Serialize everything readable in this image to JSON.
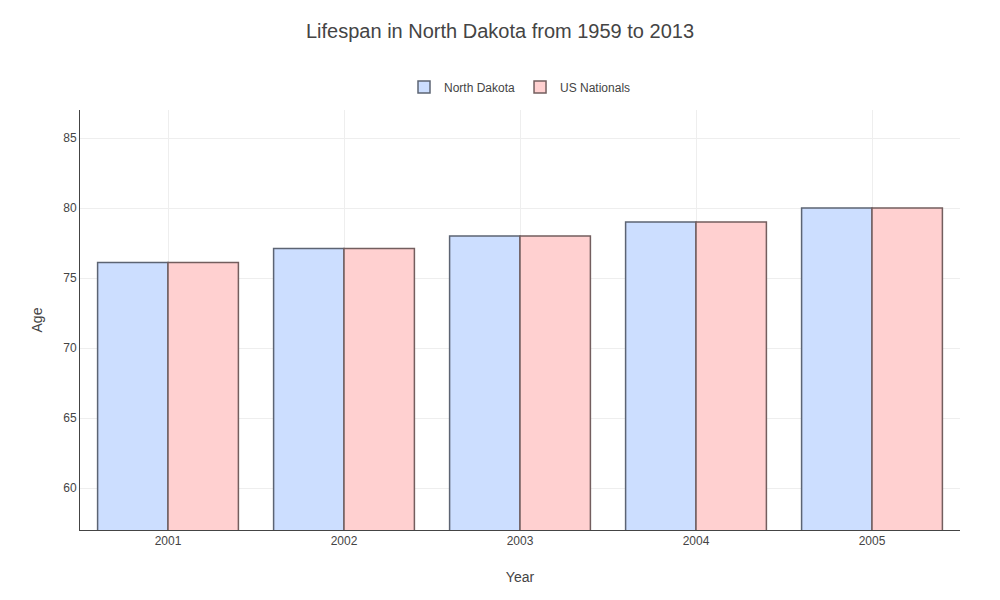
{
  "chart_data": {
    "type": "bar",
    "title": "Lifespan in North Dakota from 1959 to 2013",
    "x_label": "Year",
    "y_label": "Age",
    "categories": [
      "2001",
      "2002",
      "2003",
      "2004",
      "2005"
    ],
    "series": [
      {
        "name": "North Dakota",
        "color": "#ccdeff",
        "values": [
          76.1,
          77.1,
          78.0,
          79.0,
          80.0
        ]
      },
      {
        "name": "US Nationals",
        "color": "#ffd0d0",
        "values": [
          76.1,
          77.1,
          78.0,
          79.0,
          80.0
        ]
      }
    ],
    "ylim": [
      57,
      87
    ],
    "yticks": [
      60,
      65,
      70,
      75,
      80,
      85
    ],
    "grid": true,
    "legend": "top"
  }
}
